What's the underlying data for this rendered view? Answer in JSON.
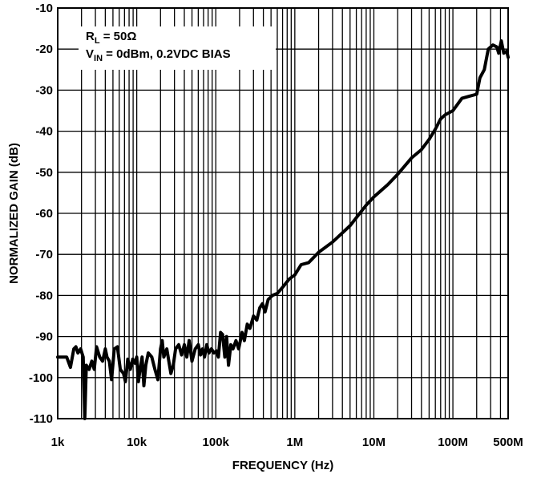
{
  "chart_data": {
    "type": "line",
    "xlabel": "FREQUENCY (Hz)",
    "ylabel": "NORMALIZED GAIN (dB)",
    "x_scale": "log",
    "xlim": [
      1000,
      500000000
    ],
    "ylim": [
      -110,
      -10
    ],
    "grid": true,
    "x_ticks": [
      {
        "value": 1000,
        "label": "1k"
      },
      {
        "value": 10000,
        "label": "10k"
      },
      {
        "value": 100000,
        "label": "100k"
      },
      {
        "value": 1000000,
        "label": "1M"
      },
      {
        "value": 10000000,
        "label": "10M"
      },
      {
        "value": 100000000,
        "label": "100M"
      },
      {
        "value": 500000000,
        "label": "500M"
      }
    ],
    "y_ticks": [
      {
        "value": -10,
        "label": "-10"
      },
      {
        "value": -20,
        "label": "-20"
      },
      {
        "value": -30,
        "label": "-30"
      },
      {
        "value": -40,
        "label": "-40"
      },
      {
        "value": -50,
        "label": "-50"
      },
      {
        "value": -60,
        "label": "-60"
      },
      {
        "value": -70,
        "label": "-70"
      },
      {
        "value": -80,
        "label": "-80"
      },
      {
        "value": -90,
        "label": "-90"
      },
      {
        "value": -100,
        "label": "-100"
      },
      {
        "value": -110,
        "label": "-110"
      }
    ],
    "legend": {
      "line1_main": "R",
      "line1_sub": "L",
      "line1_rest": " = 50Ω",
      "line2_main": "V",
      "line2_sub": "IN",
      "line2_rest": " = 0dBm, 0.2VDC BIAS",
      "placement": "top-left"
    },
    "series": [
      {
        "color": "#000000",
        "points": [
          [
            1000,
            -95
          ],
          [
            1300,
            -95
          ],
          [
            1450,
            -97.5
          ],
          [
            1600,
            -93
          ],
          [
            1700,
            -92.5
          ],
          [
            1800,
            -94
          ],
          [
            1950,
            -93
          ],
          [
            2100,
            -95
          ],
          [
            2200,
            -110
          ],
          [
            2300,
            -97
          ],
          [
            2500,
            -98
          ],
          [
            2700,
            -96
          ],
          [
            2900,
            -98
          ],
          [
            3100,
            -92.5
          ],
          [
            3400,
            -95
          ],
          [
            3700,
            -96
          ],
          [
            4000,
            -93
          ],
          [
            4200,
            -95
          ],
          [
            4500,
            -96
          ],
          [
            4800,
            -100.5
          ],
          [
            5200,
            -93
          ],
          [
            5700,
            -92.5
          ],
          [
            6200,
            -98
          ],
          [
            6800,
            -99
          ],
          [
            7200,
            -101
          ],
          [
            7700,
            -95.5
          ],
          [
            8300,
            -98
          ],
          [
            8900,
            -95.5
          ],
          [
            9500,
            -96.5
          ],
          [
            10000,
            -95
          ],
          [
            10500,
            -101
          ],
          [
            11000,
            -98
          ],
          [
            11700,
            -95
          ],
          [
            12300,
            -102
          ],
          [
            13000,
            -97
          ],
          [
            14000,
            -94
          ],
          [
            15500,
            -95
          ],
          [
            17000,
            -98
          ],
          [
            18500,
            -100.5
          ],
          [
            20000,
            -93
          ],
          [
            21000,
            -91
          ],
          [
            22000,
            -95
          ],
          [
            24000,
            -93
          ],
          [
            27000,
            -99
          ],
          [
            29000,
            -97
          ],
          [
            31000,
            -93
          ],
          [
            34000,
            -92
          ],
          [
            37000,
            -94.5
          ],
          [
            40000,
            -92
          ],
          [
            43000,
            -95
          ],
          [
            46000,
            -91
          ],
          [
            50000,
            -96
          ],
          [
            55000,
            -93
          ],
          [
            60000,
            -92
          ],
          [
            64000,
            -94.5
          ],
          [
            68000,
            -93
          ],
          [
            72000,
            -95
          ],
          [
            77000,
            -92
          ],
          [
            82000,
            -94
          ],
          [
            88000,
            -93
          ],
          [
            95000,
            -94
          ],
          [
            102000,
            -93.5
          ],
          [
            108000,
            -95
          ],
          [
            115000,
            -89
          ],
          [
            122000,
            -89.5
          ],
          [
            130000,
            -95
          ],
          [
            137000,
            -90
          ],
          [
            145000,
            -97
          ],
          [
            155000,
            -92
          ],
          [
            165000,
            -93
          ],
          [
            180000,
            -91
          ],
          [
            195000,
            -93
          ],
          [
            215000,
            -89
          ],
          [
            230000,
            -91
          ],
          [
            250000,
            -87
          ],
          [
            270000,
            -88
          ],
          [
            300000,
            -85
          ],
          [
            330000,
            -86
          ],
          [
            360000,
            -83
          ],
          [
            390000,
            -82
          ],
          [
            420000,
            -84
          ],
          [
            460000,
            -81
          ],
          [
            520000,
            -80
          ],
          [
            600000,
            -79.5
          ],
          [
            700000,
            -78
          ],
          [
            850000,
            -76
          ],
          [
            1000000,
            -75
          ],
          [
            1200000,
            -72.5
          ],
          [
            1500000,
            -72
          ],
          [
            2000000,
            -69.5
          ],
          [
            3000000,
            -67
          ],
          [
            5000000,
            -63
          ],
          [
            8000000,
            -58
          ],
          [
            10000000,
            -56
          ],
          [
            15000000,
            -53
          ],
          [
            20000000,
            -50.5
          ],
          [
            30000000,
            -46.5
          ],
          [
            40000000,
            -44.5
          ],
          [
            50000000,
            -42
          ],
          [
            60000000,
            -39.5
          ],
          [
            70000000,
            -37
          ],
          [
            80000000,
            -36
          ],
          [
            100000000,
            -35
          ],
          [
            130000000,
            -32
          ],
          [
            160000000,
            -31.5
          ],
          [
            200000000,
            -31
          ],
          [
            220000000,
            -27
          ],
          [
            250000000,
            -25
          ],
          [
            280000000,
            -20
          ],
          [
            320000000,
            -19
          ],
          [
            360000000,
            -19.5
          ],
          [
            380000000,
            -21
          ],
          [
            410000000,
            -18
          ],
          [
            440000000,
            -21
          ],
          [
            480000000,
            -20.5
          ],
          [
            500000000,
            -22
          ]
        ]
      }
    ]
  }
}
